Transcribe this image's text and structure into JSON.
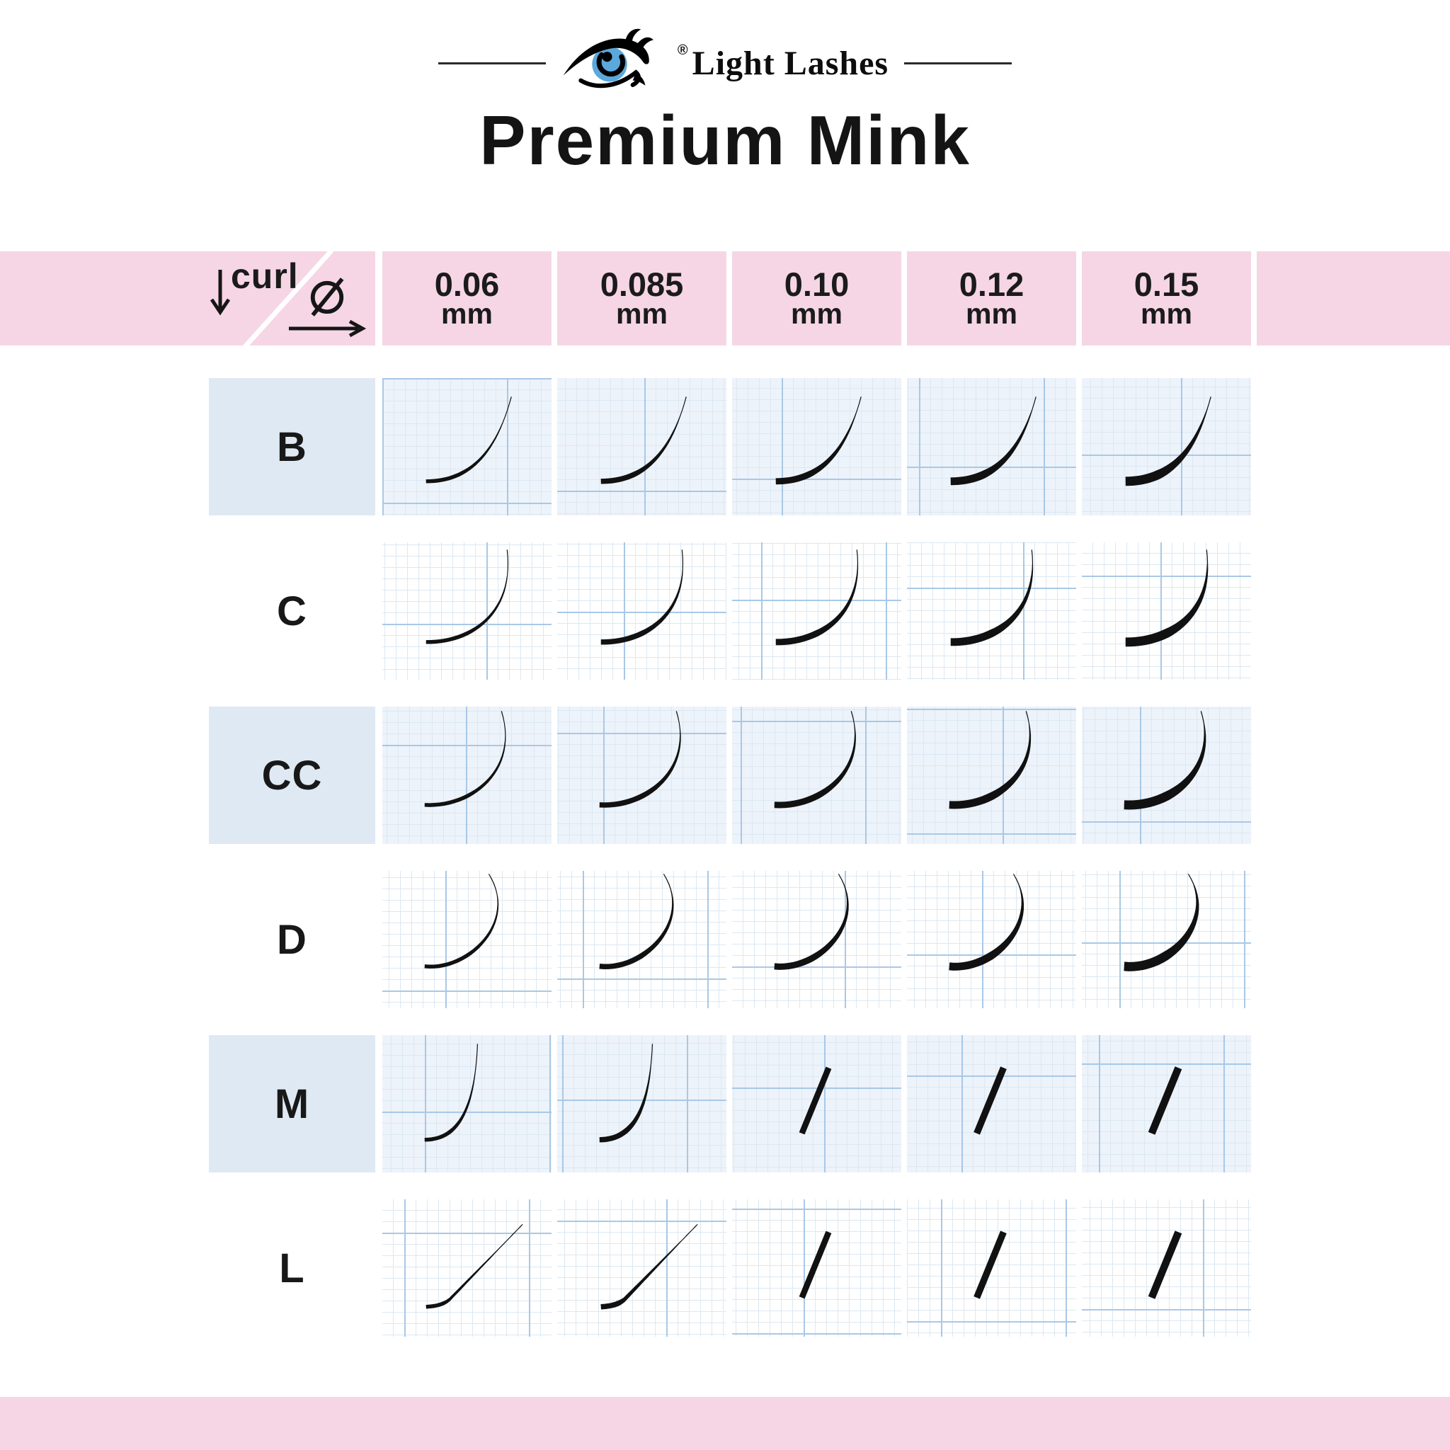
{
  "logo": {
    "brand": "Light Lashes",
    "registered": "®"
  },
  "title": "Premium Mink",
  "header": {
    "curl_label": "curl",
    "curl_arrow_icon": "down-arrow",
    "diameter_symbol": "Ø",
    "diameter_arrow_icon": "right-arrow",
    "unit": "mm",
    "columns": [
      "0.06",
      "0.085",
      "0.10",
      "0.12",
      "0.15"
    ]
  },
  "table": {
    "curls": [
      "B",
      "C",
      "CC",
      "D",
      "M",
      "L"
    ],
    "diameters_mm": [
      0.06,
      0.085,
      0.1,
      0.12,
      0.15
    ],
    "rows": [
      {
        "curl": "B",
        "shaded": true,
        "cells": [
          "curve",
          "curve",
          "curve",
          "curve",
          "curve"
        ]
      },
      {
        "curl": "C",
        "shaded": false,
        "cells": [
          "curve",
          "curve",
          "curve",
          "curve",
          "curve"
        ]
      },
      {
        "curl": "CC",
        "shaded": true,
        "cells": [
          "curve",
          "curve",
          "curve",
          "curve",
          "curve"
        ]
      },
      {
        "curl": "D",
        "shaded": false,
        "cells": [
          "curve",
          "curve",
          "curve",
          "curve",
          "curve"
        ]
      },
      {
        "curl": "M",
        "shaded": true,
        "cells": [
          "curve",
          "curve",
          "slash",
          "slash",
          "slash"
        ]
      },
      {
        "curl": "L",
        "shaded": false,
        "cells": [
          "curve",
          "curve",
          "slash",
          "slash",
          "slash"
        ]
      }
    ]
  },
  "colors": {
    "pink": "#f6d6e4",
    "label_blue": "#dfe9f3",
    "cell_tint": "#edf3fa",
    "grid_fine": "#dce8f2",
    "grid_major": "#a9c8e6",
    "iris_blue": "#5ba8dc",
    "ink": "#1b1b1b"
  }
}
